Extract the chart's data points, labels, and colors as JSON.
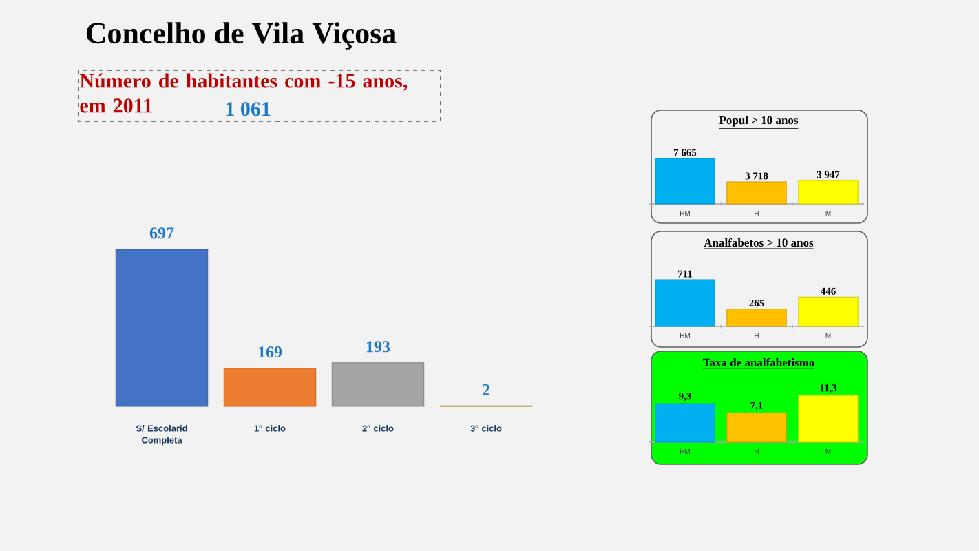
{
  "chart_data": [
    {
      "type": "bar",
      "title": "Concelho de Vila Viçosa",
      "subtitle": "Número de habitantes com -15 anos, em 2011",
      "annotations": [
        "1 061"
      ],
      "categories": [
        "S/ Escolarid Completa",
        "1º ciclo",
        "2º ciclo",
        "3º ciclo"
      ],
      "values": [
        697,
        169,
        193,
        2
      ],
      "colors": [
        "#4472c4",
        "#ed7d31",
        "#a5a5a5",
        "#bf9000"
      ],
      "data_labels": true
    },
    {
      "type": "bar",
      "title": "Popul > 10 anos",
      "categories": [
        "HM",
        "H",
        "M"
      ],
      "values": [
        7665,
        3718,
        3947
      ],
      "value_labels": [
        "7 665",
        "3 718",
        "3 947"
      ],
      "colors": [
        "#00b0f0",
        "#ffc000",
        "#ffff00"
      ]
    },
    {
      "type": "bar",
      "title": "Analfabetos > 10 anos",
      "categories": [
        "HM",
        "H",
        "M"
      ],
      "values": [
        711,
        265,
        446
      ],
      "value_labels": [
        "711",
        "265",
        "446"
      ],
      "colors": [
        "#00b0f0",
        "#ffc000",
        "#ffff00"
      ]
    },
    {
      "type": "bar",
      "title": "Taxa de analfabetismo",
      "categories": [
        "HM",
        "H",
        "M"
      ],
      "values": [
        9.3,
        7.1,
        11.3
      ],
      "value_labels": [
        "9,3",
        "7,1",
        "11,3"
      ],
      "colors": [
        "#00b0f0",
        "#ffc000",
        "#ffff00"
      ]
    }
  ]
}
